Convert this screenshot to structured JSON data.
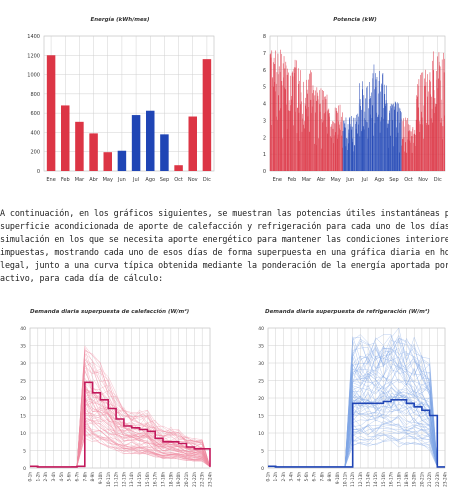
{
  "paragraph_lines": [
    "A continuación, en los gráficos siguientes, se muestran las potencias útiles instantáneas por",
    "superficie acondicionada de aporte de calefacción y refrigeración para cada uno de los días de la",
    "simulación en los que se necesita aporte energético para mantener las condiciones interiores",
    "impuestas, mostrando cada uno de esos días de forma superpuesta en una gráfica diaria en horario",
    "legal, junto a una curva típica obtenida mediante la ponderación de la energía aportada por día",
    "activo, para cada día de cálculo:"
  ],
  "colors": {
    "heating": "#dc3545",
    "cooling": "#1f45b5",
    "heating_light": "#ef8aa0",
    "cooling_light": "#7fa6e6",
    "grid": "#d0d0d0"
  },
  "chart_data": [
    {
      "type": "bar",
      "title": "Energía (kWh/mes)",
      "categories": [
        "Ene",
        "Feb",
        "Mar",
        "Abr",
        "May",
        "Jun",
        "Jul",
        "Ago",
        "Sep",
        "Oct",
        "Nov",
        "Dic"
      ],
      "values": [
        1200,
        680,
        510,
        390,
        195,
        210,
        580,
        625,
        380,
        60,
        565,
        1160
      ],
      "bar_colors": [
        "#dc3545",
        "#dc3545",
        "#dc3545",
        "#dc3545",
        "#dc3545",
        "#1f45b5",
        "#1f45b5",
        "#1f45b5",
        "#1f45b5",
        "#dc3545",
        "#dc3545",
        "#dc3545"
      ],
      "ylim": [
        0,
        1400
      ],
      "yticks": [
        0,
        200,
        400,
        600,
        800,
        1000,
        1200,
        1400
      ],
      "grid": true
    },
    {
      "type": "area",
      "title": "Potencia (kW)",
      "categories": [
        "Ene",
        "Feb",
        "Mar",
        "Abr",
        "May",
        "Jun",
        "Jul",
        "Ago",
        "Sep",
        "Oct",
        "Nov",
        "Dic"
      ],
      "ylim": [
        0,
        8
      ],
      "yticks": [
        0,
        1,
        2,
        3,
        4,
        5,
        6,
        7,
        8
      ],
      "series": [
        {
          "color": "#dc3545",
          "month_peaks": [
            7.2,
            6.6,
            6.0,
            5.1,
            4.0,
            0,
            0,
            0,
            0,
            3.2,
            6.0,
            7.1
          ]
        },
        {
          "color": "#1f45b5",
          "month_peaks": [
            0,
            0,
            0,
            0,
            0,
            3.4,
            5.4,
            6.4,
            4.2,
            0,
            0,
            0
          ]
        }
      ],
      "grid": true
    },
    {
      "type": "line",
      "title": "Demanda diaria superpuesta de calefacción (W/m²)",
      "x": [
        "0-1h",
        "1-2h",
        "2-3h",
        "3-4h",
        "4-5h",
        "5-6h",
        "6-7h",
        "7-8h",
        "8-9h",
        "9-10h",
        "10-11h",
        "11-12h",
        "12-13h",
        "13-14h",
        "14-15h",
        "15-16h",
        "16-17h",
        "17-18h",
        "18-19h",
        "19-20h",
        "20-21h",
        "21-22h",
        "22-23h",
        "23-24h"
      ],
      "ylim": [
        0,
        40
      ],
      "yticks": [
        0,
        5,
        10,
        15,
        20,
        25,
        30,
        35,
        40
      ],
      "series": [
        {
          "color": "#c2185b",
          "values": [
            0.5,
            0.3,
            0.3,
            0.3,
            0.3,
            0.3,
            0.5,
            24.5,
            21.5,
            19.5,
            17,
            14,
            12,
            11.5,
            11,
            10.5,
            8.5,
            7.5,
            7.5,
            7,
            6,
            5.5,
            5.5,
            0.3
          ]
        }
      ],
      "overlay_color": "#ef8aa0",
      "overlay_peak_max": 35,
      "grid": true
    },
    {
      "type": "line",
      "title": "Demanda diaria superpuesta de refrigeración (W/m²)",
      "x": [
        "0-1h",
        "1-2h",
        "2-3h",
        "3-4h",
        "4-5h",
        "5-6h",
        "6-7h",
        "7-8h",
        "8-9h",
        "9-10h",
        "10-11h",
        "11-12h",
        "12-13h",
        "13-14h",
        "14-15h",
        "15-16h",
        "16-17h",
        "17-18h",
        "18-19h",
        "19-20h",
        "20-21h",
        "21-22h",
        "22-23h",
        "23-24h"
      ],
      "ylim": [
        0,
        40
      ],
      "yticks": [
        0,
        5,
        10,
        15,
        20,
        25,
        30,
        35,
        40
      ],
      "series": [
        {
          "color": "#1f45b5",
          "values": [
            0.5,
            0.3,
            0.3,
            0.3,
            0.3,
            0.3,
            0.3,
            0.3,
            0.3,
            0.3,
            0.3,
            18.5,
            18.5,
            18.5,
            18.5,
            19,
            19.5,
            19.5,
            18.5,
            17.5,
            16.5,
            15,
            0.3,
            0.3
          ]
        }
      ],
      "overlay_color": "#7fa6e6",
      "overlay_peak_max": 37,
      "grid": true
    }
  ]
}
